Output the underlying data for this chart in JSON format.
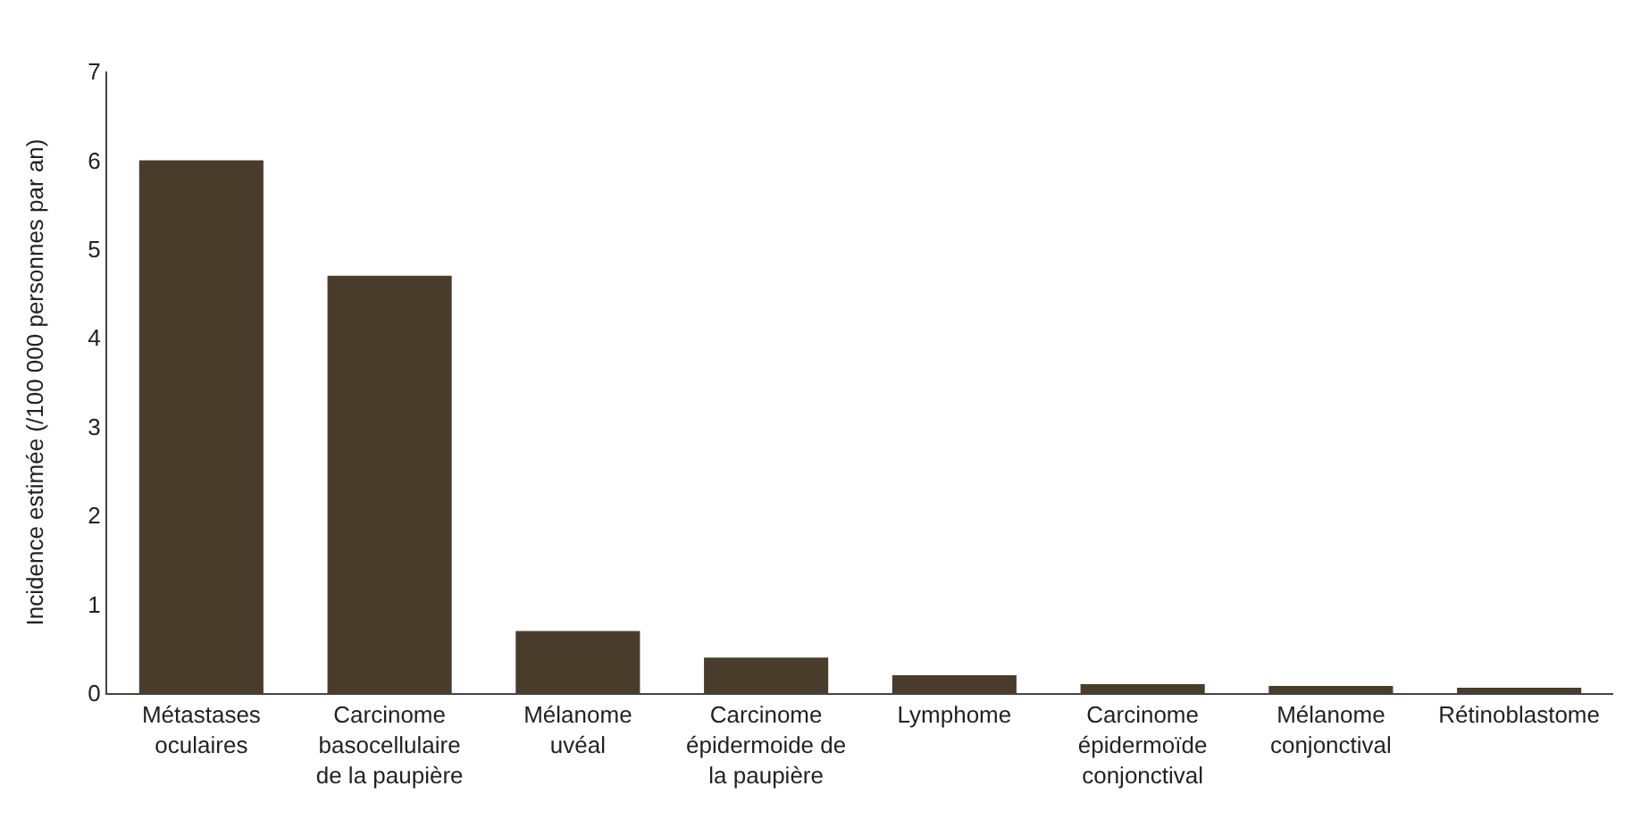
{
  "chart_data": {
    "type": "bar",
    "ylabel": "Incidence estimée (/100 000 personnes par an)",
    "categories": [
      "Métastases\noculaires",
      "Carcinome\nbasocellulaire\nde la paupière",
      "Mélanome\nuvéal",
      "Carcinome\népidermoide de\nla paupière",
      "Lymphome",
      "Carcinome\népidermoïde\nconjonctival",
      "Mélanome\nconjonctival",
      "Rétinoblastome"
    ],
    "values": [
      6,
      4.7,
      0.7,
      0.4,
      0.2,
      0.1,
      0.08,
      0.06
    ],
    "color": "#4a3c2b",
    "ylim": [
      0,
      7
    ],
    "yticks": [
      0,
      1,
      2,
      3,
      4,
      5,
      6,
      7
    ],
    "grid": false
  }
}
